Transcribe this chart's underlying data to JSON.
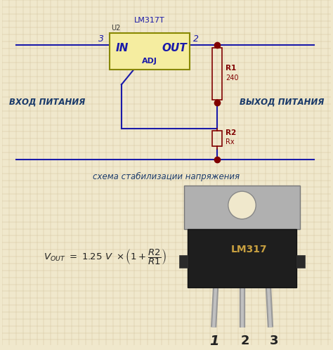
{
  "background_color": "#f0e8cc",
  "grid_color": "#d4c4a0",
  "fig_width": 4.74,
  "fig_height": 4.98,
  "dpi": 100,
  "wire_color": "#1a1aaa",
  "node_color": "#800000",
  "resistor_color": "#800000",
  "ic_fill": "#f5eda0",
  "ic_border": "#888800",
  "title_lm317t": "LM317T",
  "label_u2": "U2",
  "label_in": "IN",
  "label_out": "OUT",
  "label_adj": "ADJ",
  "label_3": "3",
  "label_2": "2",
  "label_r1": "R1",
  "label_240": "240",
  "label_r2": "R2",
  "label_rx": "Rx",
  "label_vhod": "ВХОД ПИТАНИЯ",
  "label_vyhod": "ВЫХОД ПИТАНИЯ",
  "label_schema": "схема стабилизации напряжения",
  "label_pins": [
    "1",
    "2",
    "3"
  ]
}
